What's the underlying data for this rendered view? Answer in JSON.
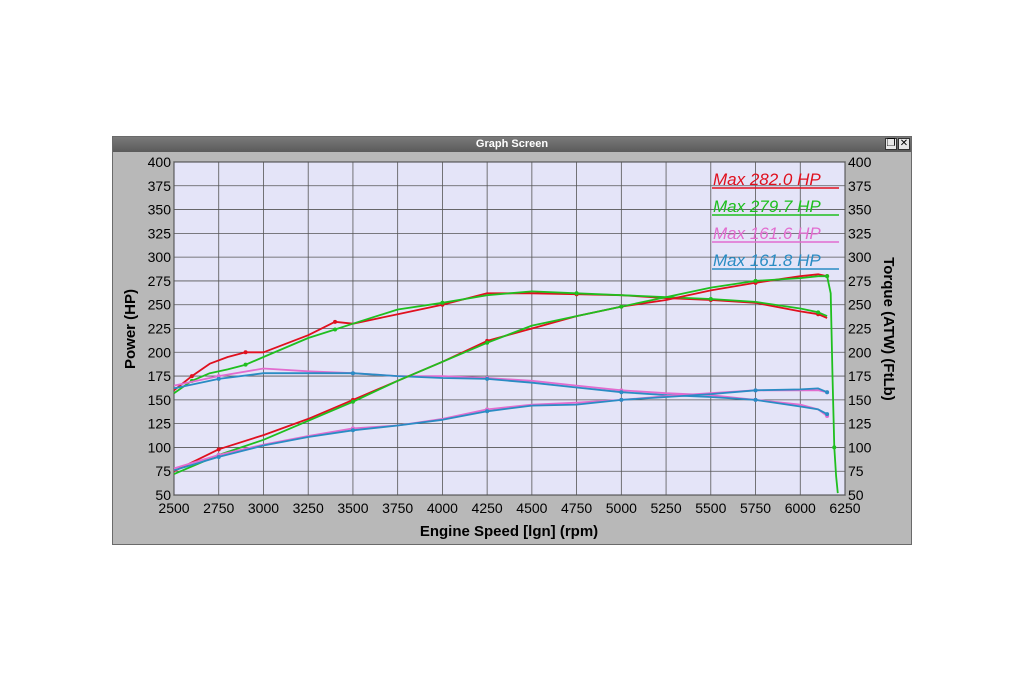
{
  "window": {
    "title": "Graph Screen",
    "restore_icon": "restore-icon",
    "close_icon": "close-icon",
    "close_glyph": "✕",
    "restore_glyph": "❐"
  },
  "chart_data": {
    "type": "line",
    "xlabel": "Engine Speed [lgn] (rpm)",
    "ylabel_left": "Power (HP)",
    "ylabel_right": "Torque (ATW) (FtLb)",
    "xlim": [
      2500,
      6250
    ],
    "ylim": [
      50,
      400
    ],
    "x_ticks": [
      "2500",
      "2750",
      "3000",
      "3250",
      "3500",
      "3750",
      "4000",
      "4250",
      "4500",
      "4750",
      "5000",
      "5250",
      "5500",
      "5750",
      "6000",
      "6250"
    ],
    "y_ticks_left": [
      "400",
      "375",
      "350",
      "325",
      "300",
      "275",
      "250",
      "225",
      "200",
      "175",
      "150",
      "125",
      "100",
      "75",
      "50"
    ],
    "y_ticks_right": [
      "400",
      "375",
      "350",
      "325",
      "300",
      "275",
      "250",
      "225",
      "200",
      "175",
      "150",
      "125",
      "100",
      "75",
      "50"
    ],
    "grid": true,
    "legend": [
      {
        "text": "Max 282.0 HP",
        "color": "#e0101e"
      },
      {
        "text": "Max 279.7 HP",
        "color": "#1fbf1f"
      },
      {
        "text": "Max 161.6 HP",
        "color": "#e26ccf"
      },
      {
        "text": "Max 161.8 HP",
        "color": "#2a8cc4"
      }
    ],
    "series": [
      {
        "color": "#e0101e",
        "x": [
          2500,
          2600,
          2700,
          2800,
          2900,
          3000,
          3250,
          3400,
          3500,
          3750,
          4000,
          4250,
          4500,
          4750,
          5000,
          5250,
          5500,
          5750,
          6000,
          6100,
          6150
        ],
        "values": [
          160,
          175,
          188,
          195,
          200,
          200,
          218,
          232,
          230,
          240,
          250,
          262,
          262,
          261,
          260,
          257,
          255,
          252,
          243,
          240,
          236
        ]
      },
      {
        "color": "#1fbf1f",
        "x": [
          2500,
          2600,
          2700,
          2800,
          2900,
          3000,
          3250,
          3400,
          3500,
          3750,
          4000,
          4250,
          4500,
          4750,
          5000,
          5250,
          5500,
          5750,
          6000,
          6100,
          6150
        ],
        "values": [
          157,
          170,
          178,
          182,
          187,
          195,
          215,
          224,
          230,
          245,
          252,
          260,
          264,
          262,
          260,
          258,
          256,
          253,
          246,
          242,
          238
        ]
      },
      {
        "color": "#e26ccf",
        "x": [
          2500,
          2750,
          3000,
          3250,
          3500,
          3750,
          4000,
          4250,
          4500,
          4750,
          5000,
          5250,
          5500,
          5750,
          6000,
          6100,
          6150
        ],
        "values": [
          165,
          175,
          183,
          180,
          178,
          175,
          175,
          173,
          170,
          165,
          160,
          157,
          155,
          150,
          145,
          140,
          133
        ]
      },
      {
        "color": "#2a8cc4",
        "x": [
          2500,
          2750,
          3000,
          3250,
          3500,
          3750,
          4000,
          4250,
          4500,
          4750,
          5000,
          5250,
          5500,
          5750,
          6000,
          6100,
          6150
        ],
        "values": [
          162,
          172,
          178,
          178,
          178,
          175,
          173,
          172,
          168,
          163,
          158,
          155,
          153,
          150,
          143,
          140,
          135
        ]
      },
      {
        "color": "#e0101e",
        "x": [
          2500,
          2750,
          3000,
          3250,
          3500,
          3750,
          4000,
          4250,
          4500,
          4750,
          5000,
          5250,
          5500,
          5750,
          6000,
          6100,
          6150
        ],
        "values": [
          75,
          98,
          113,
          130,
          150,
          170,
          190,
          212,
          225,
          238,
          248,
          255,
          265,
          273,
          280,
          282,
          280
        ]
      },
      {
        "color": "#1fbf1f",
        "x": [
          2500,
          2750,
          3000,
          3250,
          3500,
          3750,
          4000,
          4250,
          4500,
          4750,
          5000,
          5250,
          5500,
          5750,
          6000,
          6100,
          6150,
          6170,
          6180,
          6190,
          6200,
          6210
        ],
        "values": [
          72,
          92,
          108,
          128,
          148,
          170,
          190,
          210,
          228,
          238,
          248,
          258,
          268,
          275,
          278,
          280,
          280,
          262,
          175,
          100,
          70,
          52
        ]
      },
      {
        "color": "#e26ccf",
        "x": [
          2500,
          2750,
          3000,
          3250,
          3500,
          3750,
          4000,
          4250,
          4500,
          4750,
          5000,
          5250,
          5500,
          5750,
          6000,
          6100,
          6150
        ],
        "values": [
          78,
          92,
          103,
          112,
          120,
          123,
          130,
          140,
          145,
          147,
          150,
          154,
          157,
          160,
          160,
          160,
          158
        ]
      },
      {
        "color": "#2a8cc4",
        "x": [
          2500,
          2750,
          3000,
          3250,
          3500,
          3750,
          4000,
          4250,
          4500,
          4750,
          5000,
          5250,
          5500,
          5750,
          6000,
          6100,
          6150
        ],
        "values": [
          76,
          90,
          102,
          111,
          118,
          123,
          129,
          138,
          144,
          145,
          150,
          153,
          156,
          160,
          161,
          162,
          158
        ]
      }
    ]
  }
}
